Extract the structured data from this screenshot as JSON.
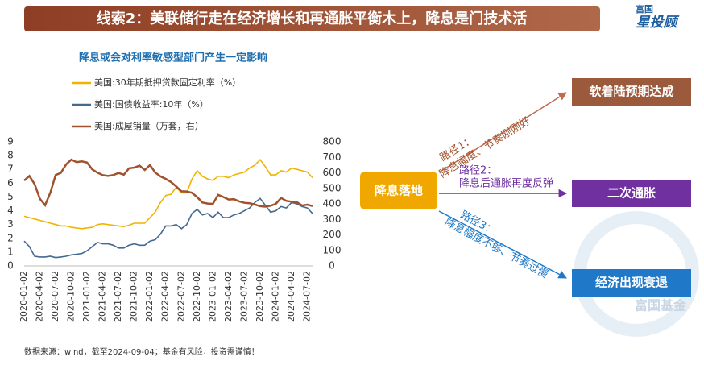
{
  "header": {
    "title": "线索2：美联储行走在经济增长和再通胀平衡木上，降息是门技术活",
    "logo_top": "富国",
    "logo_main": "星投顾"
  },
  "chart_data": {
    "type": "line",
    "title": "降息或会对利率敏感型部门产生一定影响",
    "categories": [
      "2020-01-02",
      null,
      null,
      "2020-04-02",
      null,
      null,
      "2020-07-02",
      null,
      null,
      "2020-10-02",
      null,
      null,
      "2021-01-02",
      null,
      null,
      "2021-04-02",
      null,
      null,
      "2021-07-02",
      null,
      null,
      "2021-10-02",
      null,
      null,
      "2022-01-02",
      null,
      null,
      "2022-04-02",
      null,
      null,
      "2022-07-02",
      null,
      null,
      "2022-10-02",
      null,
      null,
      "2023-01-02",
      null,
      null,
      "2023-04-02",
      null,
      null,
      "2023-07-02",
      null,
      null,
      "2023-10-02",
      null,
      null,
      "2024-01-02",
      null,
      null,
      "2024-04-02",
      null,
      null,
      "2024-07-02",
      null
    ],
    "series": [
      {
        "name": "美国:30年期抵押贷款固定利率（%）",
        "color": "#f0b400",
        "values": [
          3.6,
          3.5,
          3.4,
          3.3,
          3.2,
          3.1,
          3.0,
          2.9,
          2.9,
          2.8,
          2.75,
          2.7,
          2.75,
          2.8,
          3.0,
          3.05,
          3.0,
          2.95,
          2.9,
          2.85,
          2.95,
          3.1,
          3.1,
          3.1,
          3.5,
          3.9,
          4.6,
          5.1,
          5.2,
          5.7,
          5.3,
          5.3,
          6.3,
          6.9,
          6.5,
          6.3,
          6.2,
          6.5,
          6.5,
          6.4,
          6.6,
          6.7,
          6.8,
          7.1,
          7.3,
          7.7,
          7.2,
          6.6,
          6.6,
          6.9,
          6.8,
          7.1,
          7.0,
          6.9,
          6.8,
          6.4
        ]
      },
      {
        "name": "美国:国债收益率:10年（%）",
        "color": "#44698f",
        "values": [
          1.8,
          1.4,
          0.7,
          0.65,
          0.65,
          0.7,
          0.6,
          0.65,
          0.7,
          0.8,
          0.85,
          0.9,
          1.1,
          1.4,
          1.7,
          1.6,
          1.6,
          1.5,
          1.3,
          1.3,
          1.5,
          1.6,
          1.5,
          1.5,
          1.8,
          1.9,
          2.3,
          2.9,
          2.9,
          3.0,
          2.7,
          3.0,
          3.8,
          4.1,
          3.7,
          3.8,
          3.5,
          3.9,
          3.5,
          3.5,
          3.7,
          3.8,
          4.0,
          4.2,
          4.6,
          4.9,
          4.4,
          3.9,
          4.0,
          4.3,
          4.2,
          4.6,
          4.5,
          4.3,
          4.2,
          3.8
        ]
      },
      {
        "name": "美国:成屋销量（万套，右）",
        "color": "#a0522d",
        "axis": "y2",
        "values": [
          550,
          580,
          527,
          433,
          391,
          472,
          586,
          600,
          654,
          685,
          669,
          674,
          666,
          622,
          601,
          585,
          580,
          586,
          599,
          588,
          629,
          634,
          646,
          618,
          650,
          602,
          577,
          561,
          541,
          512,
          481,
          480,
          471,
          443,
          409,
          402,
          400,
          458,
          444,
          428,
          430,
          416,
          407,
          404,
          396,
          385,
          382,
          388,
          400,
          438,
          419,
          414,
          411,
          389,
          395,
          386
        ]
      }
    ],
    "ylim": [
      0,
      9
    ],
    "yticks": [
      0,
      1,
      2,
      3,
      4,
      5,
      6,
      7,
      8,
      9
    ],
    "y2lim": [
      0,
      800
    ],
    "y2ticks": [
      0,
      100,
      200,
      300,
      400,
      500,
      600,
      700,
      800
    ],
    "grid": false
  },
  "diagram": {
    "source": "降息落地",
    "targets": [
      "软着陆预期达成",
      "二次通胀",
      "经济出现衰退"
    ],
    "paths": [
      {
        "lines": [
          "路径1：",
          "降息幅度、节奏刚刚好"
        ]
      },
      {
        "lines": [
          "路径2：",
          "降息后通胀再度反弹"
        ]
      },
      {
        "lines": [
          "路径3：",
          "降息幅度不够、节奏过慢"
        ]
      }
    ],
    "watermark": "富国基金"
  },
  "footer": "数据来源：wind，截至2024-09-04；基金有风险，投资需谨慎！"
}
